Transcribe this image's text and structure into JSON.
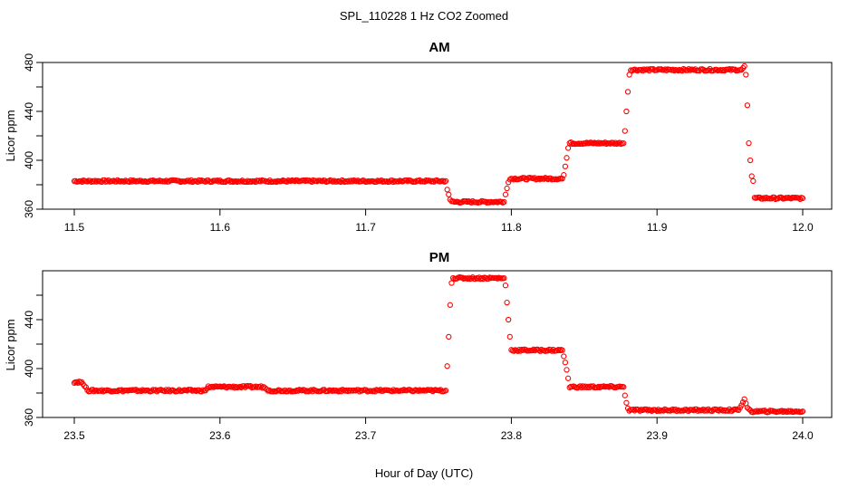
{
  "figure": {
    "title": "SPL_110228  1 Hz CO2 Zoomed",
    "xlabel": "Hour of Day (UTC)"
  },
  "chart_data": [
    {
      "type": "scatter",
      "title": "AM",
      "xlabel": "",
      "ylabel": "Licor ppm",
      "xlim": [
        11.5,
        12.0
      ],
      "ylim": [
        360,
        480
      ],
      "xticks": [
        "11.5",
        "11.6",
        "11.7",
        "11.8",
        "11.9",
        "12.0"
      ],
      "yticks": [
        "360",
        "400",
        "440",
        "480"
      ],
      "marker": "open-circle",
      "color": "#ff0000",
      "x": [
        11.5,
        11.755,
        11.756,
        11.757,
        11.758,
        11.759,
        11.76,
        11.795,
        11.796,
        11.797,
        11.798,
        11.799,
        11.835,
        11.836,
        11.837,
        11.838,
        11.839,
        11.84,
        11.877,
        11.878,
        11.879,
        11.88,
        11.881,
        11.882,
        11.958,
        11.96,
        11.961,
        11.962,
        11.963,
        11.964,
        11.965,
        11.966,
        11.967,
        12.0
      ],
      "y": [
        383,
        383,
        376,
        372,
        368,
        366,
        366,
        366,
        372,
        377,
        382,
        385,
        385,
        388,
        395,
        402,
        410,
        414,
        414,
        424,
        440,
        456,
        470,
        474,
        474,
        477,
        470,
        445,
        414,
        400,
        387,
        383,
        369,
        369
      ]
    },
    {
      "type": "scatter",
      "title": "PM",
      "xlabel": "",
      "ylabel": "Licor ppm",
      "xlim": [
        23.5,
        24.0
      ],
      "ylim": [
        360,
        480
      ],
      "xticks": [
        "23.5",
        "23.6",
        "23.7",
        "23.8",
        "23.9",
        "24.0"
      ],
      "yticks": [
        "360",
        "400",
        "440"
      ],
      "marker": "open-circle",
      "color": "#ff0000",
      "x": [
        23.5,
        23.505,
        23.508,
        23.51,
        23.59,
        23.592,
        23.63,
        23.633,
        23.755,
        23.756,
        23.757,
        23.758,
        23.759,
        23.76,
        23.795,
        23.796,
        23.797,
        23.798,
        23.799,
        23.8,
        23.835,
        23.836,
        23.837,
        23.838,
        23.839,
        23.84,
        23.877,
        23.878,
        23.879,
        23.88,
        23.881,
        23.956,
        23.958,
        23.96,
        23.962,
        23.965,
        24.0
      ],
      "y": [
        389,
        389,
        384,
        382,
        382,
        385,
        385,
        382,
        382,
        402,
        426,
        452,
        470,
        474,
        474,
        468,
        454,
        440,
        426,
        415,
        415,
        410,
        405,
        399,
        392,
        385,
        385,
        378,
        372,
        368,
        366,
        366,
        370,
        375,
        368,
        365,
        365
      ]
    }
  ]
}
